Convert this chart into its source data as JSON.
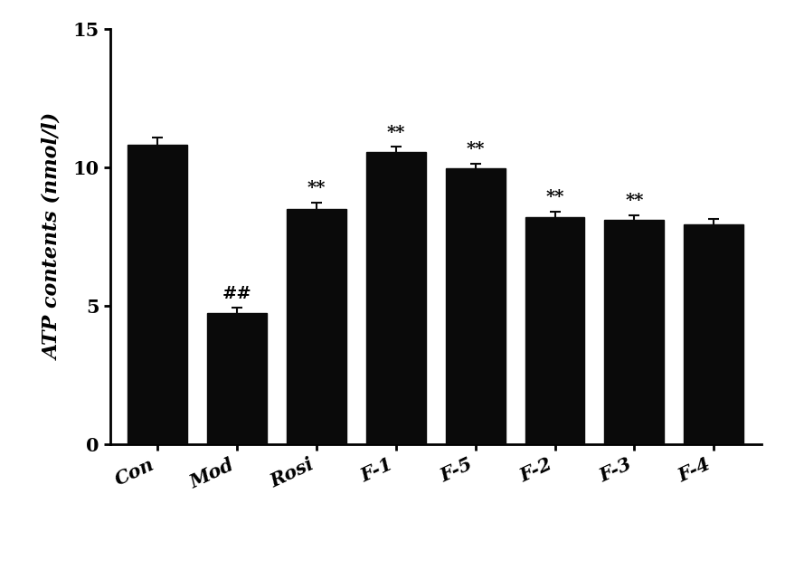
{
  "categories": [
    "Con",
    "Mod",
    "Rosi",
    "F-1",
    "F-5",
    "F-2",
    "F-3",
    "F-4"
  ],
  "values": [
    10.8,
    4.75,
    8.5,
    10.55,
    9.95,
    8.2,
    8.1,
    7.95
  ],
  "errors": [
    0.28,
    0.18,
    0.22,
    0.18,
    0.18,
    0.2,
    0.18,
    0.18
  ],
  "bar_color": "#0a0a0a",
  "error_color": "#0a0a0a",
  "ylabel": "ATP contents (nmol/l)",
  "ylim": [
    0,
    15
  ],
  "yticks": [
    0,
    5,
    10,
    15
  ],
  "background_color": "#ffffff",
  "annotations": [
    "",
    "##",
    "**",
    "**",
    "**",
    "**",
    "**",
    ""
  ],
  "tick_fontsize": 15,
  "label_fontsize": 16,
  "annotation_fontsize": 14,
  "bar_width": 0.75,
  "capsize": 4
}
